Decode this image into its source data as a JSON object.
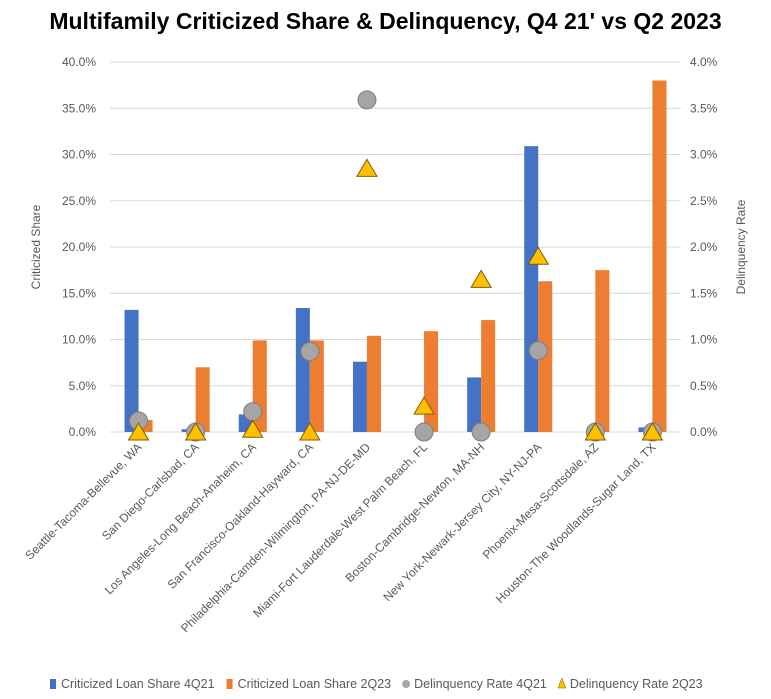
{
  "chart_data": {
    "type": "bar",
    "title": "Multifamily Criticized Share & Delinquency, Q4 21' vs Q2 2023",
    "ylabel": "Criticized Share",
    "y2label": "Delinquency Rate",
    "ylim": [
      0,
      40
    ],
    "y2lim": [
      0,
      4
    ],
    "yticks": [
      "0.0%",
      "5.0%",
      "10.0%",
      "15.0%",
      "20.0%",
      "25.0%",
      "30.0%",
      "35.0%",
      "40.0%"
    ],
    "y2ticks": [
      "0.0%",
      "0.5%",
      "1.0%",
      "1.5%",
      "2.0%",
      "2.5%",
      "3.0%",
      "3.5%",
      "4.0%"
    ],
    "grid": true,
    "legend_position": "bottom",
    "categories": [
      "Seattle-Tacoma-Bellevue, WA",
      "San Diego-Carlsbad, CA",
      "Los Angeles-Long Beach-Anaheim, CA",
      "San Francisco-Oakland-Hayward, CA",
      "Philadelphia-Camden-Wilmington, PA-NJ-DE-MD",
      "Miami-Fort Lauderdale-West Palm Beach, FL",
      "Boston-Cambridge-Newton, MA-NH",
      "New York-Newark-Jersey City, NY-NJ-PA",
      "Phoenix-Mesa-Scottsdale, AZ",
      "Houston-The Woodlands-Sugar Land, TX"
    ],
    "series": [
      {
        "name": "Criticized Loan Share 4Q21",
        "kind": "bar",
        "axis": "left",
        "color": "#4472C4",
        "values": [
          13.2,
          0.3,
          1.9,
          13.4,
          7.6,
          0,
          5.9,
          30.9,
          0,
          0.5
        ]
      },
      {
        "name": "Criticized Loan Share 2Q23",
        "kind": "bar",
        "axis": "left",
        "color": "#ED7D31",
        "values": [
          1.3,
          7.0,
          9.9,
          9.9,
          10.4,
          10.9,
          12.1,
          16.3,
          17.5,
          38.0
        ]
      },
      {
        "name": "Delinquency Rate 4Q21",
        "kind": "circle",
        "axis": "right",
        "color": "#A5A5A5",
        "values": [
          0.12,
          0.0,
          0.22,
          0.87,
          3.59,
          0.0,
          0.0,
          0.88,
          0.0,
          0.0
        ]
      },
      {
        "name": "Delinquency Rate 2Q23",
        "kind": "triangle",
        "axis": "right",
        "color": "#FFC000",
        "values": [
          0.0,
          0.0,
          0.03,
          0.0,
          2.85,
          0.28,
          1.65,
          1.9,
          0.0,
          0.0
        ]
      }
    ]
  }
}
